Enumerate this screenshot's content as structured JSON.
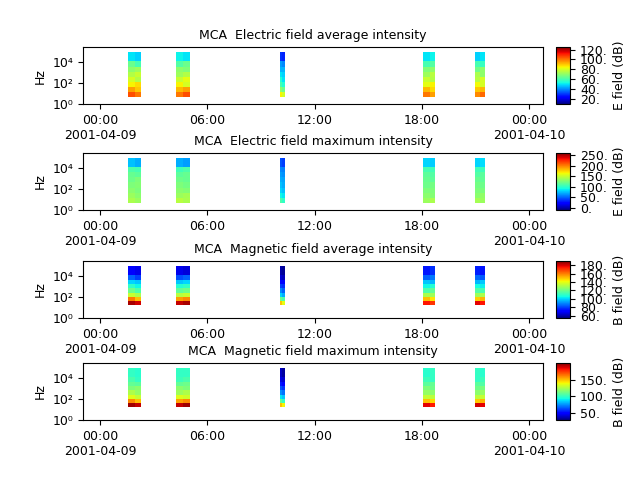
{
  "chart_data": [
    {
      "type": "heatmap",
      "title": "MCA  Electric field average intensity",
      "ylabel": "Hz",
      "log": "y",
      "xlim": [
        -0.95,
        24.75
      ],
      "xticks": [
        {
          "value": 0,
          "label": "00:00\n2001-04-09"
        },
        {
          "value": 6,
          "label": "06:00"
        },
        {
          "value": 12,
          "label": "12:00"
        },
        {
          "value": 18,
          "label": "18:00"
        },
        {
          "value": 24,
          "label": "00:00\n2001-04-10"
        }
      ],
      "ylim": [
        1,
        250000
      ],
      "yticks": [
        {
          "value": 1,
          "label": "10⁰"
        },
        {
          "value": 100,
          "label": "10²"
        },
        {
          "value": 10000,
          "label": "10⁴"
        }
      ],
      "colorbar_label": "E field (dB)",
      "colorbar_lim": [
        10,
        125
      ],
      "colorbar_ticks": [
        {
          "value": 20,
          "label": "20."
        },
        {
          "value": 40,
          "label": "40."
        },
        {
          "value": 60,
          "label": "60."
        },
        {
          "value": 80,
          "label": "80."
        },
        {
          "value": 100,
          "label": "100."
        },
        {
          "value": 120,
          "label": "120."
        }
      ],
      "freq_edges": [
        5,
        15,
        45,
        130,
        400,
        1200,
        3600,
        11000,
        80000
      ],
      "passes": [
        {
          "time_edges": [
            1.56,
            1.93,
            2.29
          ],
          "cells": [
            [
              105,
              100
            ],
            [
              95,
              90
            ],
            [
              85,
              88
            ],
            [
              80,
              75
            ],
            [
              75,
              78
            ],
            [
              70,
              72
            ],
            [
              65,
              60
            ],
            [
              50,
              48
            ]
          ]
        },
        {
          "time_edges": [
            4.24,
            4.63,
            5.02
          ],
          "cells": [
            [
              100,
              105
            ],
            [
              92,
              95
            ],
            [
              85,
              80
            ],
            [
              78,
              82
            ],
            [
              72,
              75
            ],
            [
              70,
              68
            ],
            [
              62,
              65
            ],
            [
              52,
              50
            ]
          ]
        },
        {
          "time_edges": [
            10.04,
            10.18,
            10.32
          ],
          "cells": [
            [
              85,
              80
            ],
            [
              70,
              65
            ],
            [
              60,
              55
            ],
            [
              55,
              50
            ],
            [
              50,
              48
            ],
            [
              45,
              45
            ],
            [
              42,
              40
            ],
            [
              30,
              28
            ]
          ]
        },
        {
          "time_edges": [
            18.08,
            18.42,
            18.75
          ],
          "cells": [
            [
              100,
              95
            ],
            [
              92,
              88
            ],
            [
              82,
              85
            ],
            [
              78,
              75
            ],
            [
              72,
              76
            ],
            [
              68,
              70
            ],
            [
              60,
              62
            ],
            [
              50,
              52
            ]
          ]
        },
        {
          "time_edges": [
            20.98,
            21.26,
            21.54
          ],
          "cells": [
            [
              98,
              102
            ],
            [
              90,
              92
            ],
            [
              84,
              80
            ],
            [
              76,
              80
            ],
            [
              74,
              70
            ],
            [
              66,
              70
            ],
            [
              60,
              58
            ],
            [
              48,
              50
            ]
          ]
        }
      ]
    },
    {
      "type": "heatmap",
      "title": "MCA  Electric field maximum intensity",
      "ylabel": "Hz",
      "log": "y",
      "xlim": [
        -0.95,
        24.75
      ],
      "xticks": [
        {
          "value": 0,
          "label": "00:00\n2001-04-09"
        },
        {
          "value": 6,
          "label": "06:00"
        },
        {
          "value": 12,
          "label": "12:00"
        },
        {
          "value": 18,
          "label": "18:00"
        },
        {
          "value": 24,
          "label": "00:00\n2001-04-10"
        }
      ],
      "ylim": [
        1,
        250000
      ],
      "yticks": [
        {
          "value": 1,
          "label": "10⁰"
        },
        {
          "value": 100,
          "label": "10²"
        },
        {
          "value": 10000,
          "label": "10⁴"
        }
      ],
      "colorbar_label": "E field (dB)",
      "colorbar_lim": [
        -10,
        260
      ],
      "colorbar_ticks": [
        {
          "value": 0,
          "label": "0."
        },
        {
          "value": 50,
          "label": "50."
        },
        {
          "value": 100,
          "label": "100."
        },
        {
          "value": 150,
          "label": "150."
        },
        {
          "value": 200,
          "label": "200."
        },
        {
          "value": 250,
          "label": "250."
        }
      ],
      "freq_edges": [
        5,
        15,
        45,
        130,
        400,
        1200,
        3600,
        11000,
        80000
      ],
      "passes": [
        {
          "time_edges": [
            1.56,
            1.93,
            2.29
          ],
          "cells": [
            [
              140,
              135
            ],
            [
              135,
              130
            ],
            [
              130,
              125
            ],
            [
              125,
              128
            ],
            [
              120,
              125
            ],
            [
              118,
              115
            ],
            [
              110,
              108
            ],
            [
              75,
              70
            ]
          ]
        },
        {
          "time_edges": [
            4.24,
            4.63,
            5.02
          ],
          "cells": [
            [
              145,
              140
            ],
            [
              135,
              138
            ],
            [
              130,
              128
            ],
            [
              125,
              122
            ],
            [
              120,
              118
            ],
            [
              115,
              118
            ],
            [
              105,
              110
            ],
            [
              70,
              65
            ]
          ]
        },
        {
          "time_edges": [
            10.04,
            10.18,
            10.32
          ],
          "cells": [
            [
              110,
              100
            ],
            [
              90,
              85
            ],
            [
              80,
              75
            ],
            [
              75,
              70
            ],
            [
              70,
              68
            ],
            [
              65,
              62
            ],
            [
              60,
              58
            ],
            [
              45,
              40
            ]
          ]
        },
        {
          "time_edges": [
            18.08,
            18.42,
            18.75
          ],
          "cells": [
            [
              135,
              140
            ],
            [
              130,
              128
            ],
            [
              125,
              125
            ],
            [
              120,
              122
            ],
            [
              118,
              115
            ],
            [
              115,
              112
            ],
            [
              108,
              105
            ],
            [
              80,
              78
            ]
          ]
        },
        {
          "time_edges": [
            20.98,
            21.26,
            21.54
          ],
          "cells": [
            [
              138,
              135
            ],
            [
              130,
              132
            ],
            [
              126,
              124
            ],
            [
              122,
              120
            ],
            [
              118,
              116
            ],
            [
              112,
              114
            ],
            [
              106,
              104
            ],
            [
              80,
              82
            ]
          ]
        }
      ]
    },
    {
      "type": "heatmap",
      "title": "MCA  Magnetic field average intensity",
      "ylabel": "Hz",
      "log": "y",
      "xlim": [
        -0.95,
        24.75
      ],
      "xticks": [
        {
          "value": 0,
          "label": "00:00\n2001-04-09"
        },
        {
          "value": 6,
          "label": "06:00"
        },
        {
          "value": 12,
          "label": "12:00"
        },
        {
          "value": 18,
          "label": "18:00"
        },
        {
          "value": 24,
          "label": "00:00\n2001-04-10"
        }
      ],
      "ylim": [
        1,
        250000
      ],
      "yticks": [
        {
          "value": 1,
          "label": "10⁰"
        },
        {
          "value": 100,
          "label": "10²"
        },
        {
          "value": 10000,
          "label": "10⁴"
        }
      ],
      "colorbar_label": "B field (dB)",
      "colorbar_lim": [
        55,
        190
      ],
      "colorbar_ticks": [
        {
          "value": 60,
          "label": "60."
        },
        {
          "value": 80,
          "label": "80."
        },
        {
          "value": 100,
          "label": "100."
        },
        {
          "value": 120,
          "label": "120."
        },
        {
          "value": 140,
          "label": "140."
        },
        {
          "value": 160,
          "label": "160."
        },
        {
          "value": 180,
          "label": "180."
        }
      ],
      "freq_edges": [
        16,
        40,
        100,
        250,
        630,
        1600,
        4000,
        11000,
        80000
      ],
      "passes": [
        {
          "time_edges": [
            1.56,
            1.93,
            2.29
          ],
          "cells": [
            [
              185,
              180
            ],
            [
              160,
              150
            ],
            [
              135,
              130
            ],
            [
              120,
              115
            ],
            [
              110,
              105
            ],
            [
              100,
              98
            ],
            [
              85,
              80
            ],
            [
              70,
              68
            ]
          ]
        },
        {
          "time_edges": [
            4.24,
            4.63,
            5.02
          ],
          "cells": [
            [
              182,
              185
            ],
            [
              155,
              158
            ],
            [
              132,
              135
            ],
            [
              118,
              120
            ],
            [
              108,
              110
            ],
            [
              98,
              100
            ],
            [
              82,
              85
            ],
            [
              68,
              66
            ]
          ]
        },
        {
          "time_edges": [
            10.04,
            10.18,
            10.32
          ],
          "cells": [
            [
              150,
              140
            ],
            [
              120,
              115
            ],
            [
              100,
              95
            ],
            [
              90,
              85
            ],
            [
              80,
              78
            ],
            [
              72,
              70
            ],
            [
              65,
              62
            ],
            [
              60,
              58
            ]
          ]
        },
        {
          "time_edges": [
            18.08,
            18.42,
            18.75
          ],
          "cells": [
            [
              175,
              170
            ],
            [
              150,
              145
            ],
            [
              130,
              128
            ],
            [
              115,
              118
            ],
            [
              105,
              108
            ],
            [
              98,
              96
            ],
            [
              85,
              88
            ],
            [
              75,
              78
            ]
          ]
        },
        {
          "time_edges": [
            20.98,
            21.26,
            21.54
          ],
          "cells": [
            [
              178,
              175
            ],
            [
              148,
              152
            ],
            [
              128,
              130
            ],
            [
              116,
              114
            ],
            [
              106,
              104
            ],
            [
              96,
              98
            ],
            [
              86,
              84
            ],
            [
              76,
              74
            ]
          ]
        }
      ]
    },
    {
      "type": "heatmap",
      "title": "MCA  Magnetic field maximum intensity",
      "ylabel": "Hz",
      "log": "y",
      "xlim": [
        -0.95,
        24.75
      ],
      "xticks": [
        {
          "value": 0,
          "label": "00:00\n2001-04-09"
        },
        {
          "value": 6,
          "label": "06:00"
        },
        {
          "value": 12,
          "label": "12:00"
        },
        {
          "value": 18,
          "label": "18:00"
        },
        {
          "value": 24,
          "label": "00:00\n2001-04-10"
        }
      ],
      "ylim": [
        1,
        250000
      ],
      "yticks": [
        {
          "value": 1,
          "label": "10⁰"
        },
        {
          "value": 100,
          "label": "10²"
        },
        {
          "value": 10000,
          "label": "10⁴"
        }
      ],
      "colorbar_label": "B field (dB)",
      "colorbar_lim": [
        30,
        200
      ],
      "colorbar_ticks": [
        {
          "value": 50,
          "label": "50."
        },
        {
          "value": 100,
          "label": "100."
        },
        {
          "value": 150,
          "label": "150."
        }
      ],
      "freq_edges": [
        16,
        40,
        100,
        250,
        630,
        1600,
        4000,
        11000,
        80000
      ],
      "passes": [
        {
          "time_edges": [
            1.56,
            1.93,
            2.29
          ],
          "cells": [
            [
              195,
              190
            ],
            [
              160,
              150
            ],
            [
              135,
              130
            ],
            [
              125,
              120
            ],
            [
              115,
              118
            ],
            [
              110,
              108
            ],
            [
              105,
              100
            ],
            [
              100,
              98
            ]
          ]
        },
        {
          "time_edges": [
            4.24,
            4.63,
            5.02
          ],
          "cells": [
            [
              190,
              195
            ],
            [
              155,
              160
            ],
            [
              135,
              132
            ],
            [
              122,
              125
            ],
            [
              118,
              115
            ],
            [
              110,
              112
            ],
            [
              102,
              105
            ],
            [
              100,
              100
            ]
          ]
        },
        {
          "time_edges": [
            10.04,
            10.18,
            10.32
          ],
          "cells": [
            [
              150,
              140
            ],
            [
              110,
              100
            ],
            [
              90,
              85
            ],
            [
              75,
              70
            ],
            [
              65,
              60
            ],
            [
              55,
              50
            ],
            [
              45,
              42
            ],
            [
              40,
              35
            ]
          ]
        },
        {
          "time_edges": [
            18.08,
            18.42,
            18.75
          ],
          "cells": [
            [
              185,
              180
            ],
            [
              150,
              145
            ],
            [
              130,
              128
            ],
            [
              120,
              118
            ],
            [
              115,
              112
            ],
            [
              108,
              110
            ],
            [
              102,
              100
            ],
            [
              98,
              100
            ]
          ]
        },
        {
          "time_edges": [
            20.98,
            21.26,
            21.54
          ],
          "cells": [
            [
              188,
              185
            ],
            [
              148,
              152
            ],
            [
              128,
              130
            ],
            [
              118,
              120
            ],
            [
              112,
              114
            ],
            [
              108,
              106
            ],
            [
              100,
              102
            ],
            [
              100,
              98
            ]
          ]
        }
      ]
    }
  ]
}
